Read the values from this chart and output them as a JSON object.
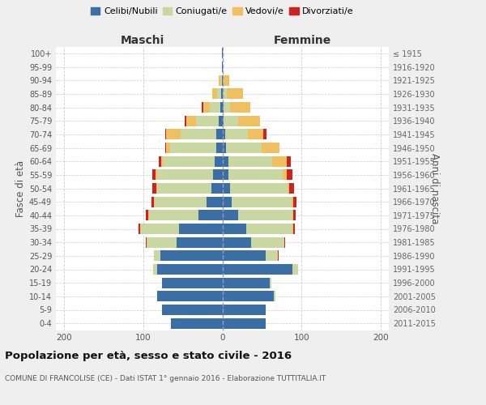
{
  "age_groups": [
    "0-4",
    "5-9",
    "10-14",
    "15-19",
    "20-24",
    "25-29",
    "30-34",
    "35-39",
    "40-44",
    "45-49",
    "50-54",
    "55-59",
    "60-64",
    "65-69",
    "70-74",
    "75-79",
    "80-84",
    "85-89",
    "90-94",
    "95-99",
    "100+"
  ],
  "birth_years": [
    "2011-2015",
    "2006-2010",
    "2001-2005",
    "1996-2000",
    "1991-1995",
    "1986-1990",
    "1981-1985",
    "1976-1980",
    "1971-1975",
    "1966-1970",
    "1961-1965",
    "1956-1960",
    "1951-1955",
    "1946-1950",
    "1941-1945",
    "1936-1940",
    "1931-1935",
    "1926-1930",
    "1921-1925",
    "1916-1920",
    "≤ 1915"
  ],
  "maschi": {
    "celibi": [
      65,
      76,
      82,
      76,
      82,
      78,
      58,
      55,
      30,
      20,
      14,
      12,
      10,
      8,
      8,
      5,
      3,
      2,
      1,
      1,
      1
    ],
    "coniugati": [
      0,
      0,
      0,
      0,
      5,
      8,
      38,
      48,
      62,
      65,
      68,
      70,
      65,
      58,
      45,
      28,
      13,
      5,
      2,
      0,
      0
    ],
    "vedovi": [
      0,
      0,
      0,
      0,
      0,
      0,
      0,
      1,
      1,
      1,
      1,
      2,
      2,
      5,
      18,
      12,
      8,
      6,
      2,
      0,
      0
    ],
    "divorziati": [
      0,
      0,
      0,
      0,
      0,
      0,
      1,
      2,
      4,
      3,
      5,
      4,
      3,
      1,
      1,
      3,
      2,
      0,
      0,
      0,
      0
    ]
  },
  "femmine": {
    "nubili": [
      55,
      55,
      65,
      60,
      88,
      55,
      36,
      30,
      20,
      12,
      10,
      8,
      8,
      5,
      4,
      2,
      2,
      1,
      1,
      0,
      0
    ],
    "coniugate": [
      0,
      0,
      2,
      2,
      8,
      15,
      42,
      58,
      68,
      75,
      72,
      68,
      55,
      45,
      28,
      18,
      8,
      5,
      0,
      0,
      0
    ],
    "vedove": [
      0,
      0,
      0,
      0,
      0,
      0,
      0,
      1,
      1,
      2,
      2,
      5,
      18,
      22,
      20,
      28,
      25,
      20,
      8,
      0,
      1
    ],
    "divorziate": [
      0,
      0,
      0,
      0,
      0,
      1,
      1,
      2,
      3,
      4,
      6,
      7,
      5,
      0,
      4,
      0,
      0,
      0,
      0,
      1,
      0
    ]
  },
  "color_celibi": "#3a6ea5",
  "color_coniugati": "#c8d8a0",
  "color_vedovi": "#f0c060",
  "color_divorziati": "#cc2222",
  "xlim": 210,
  "title": "Popolazione per età, sesso e stato civile - 2016",
  "subtitle": "COMUNE DI FRANCOLISE (CE) - Dati ISTAT 1° gennaio 2016 - Elaborazione TUTTITALIA.IT",
  "ylabel_left": "Fasce di età",
  "ylabel_right": "Anni di nascita",
  "bg_color": "#efefef",
  "plot_bg": "#ffffff"
}
